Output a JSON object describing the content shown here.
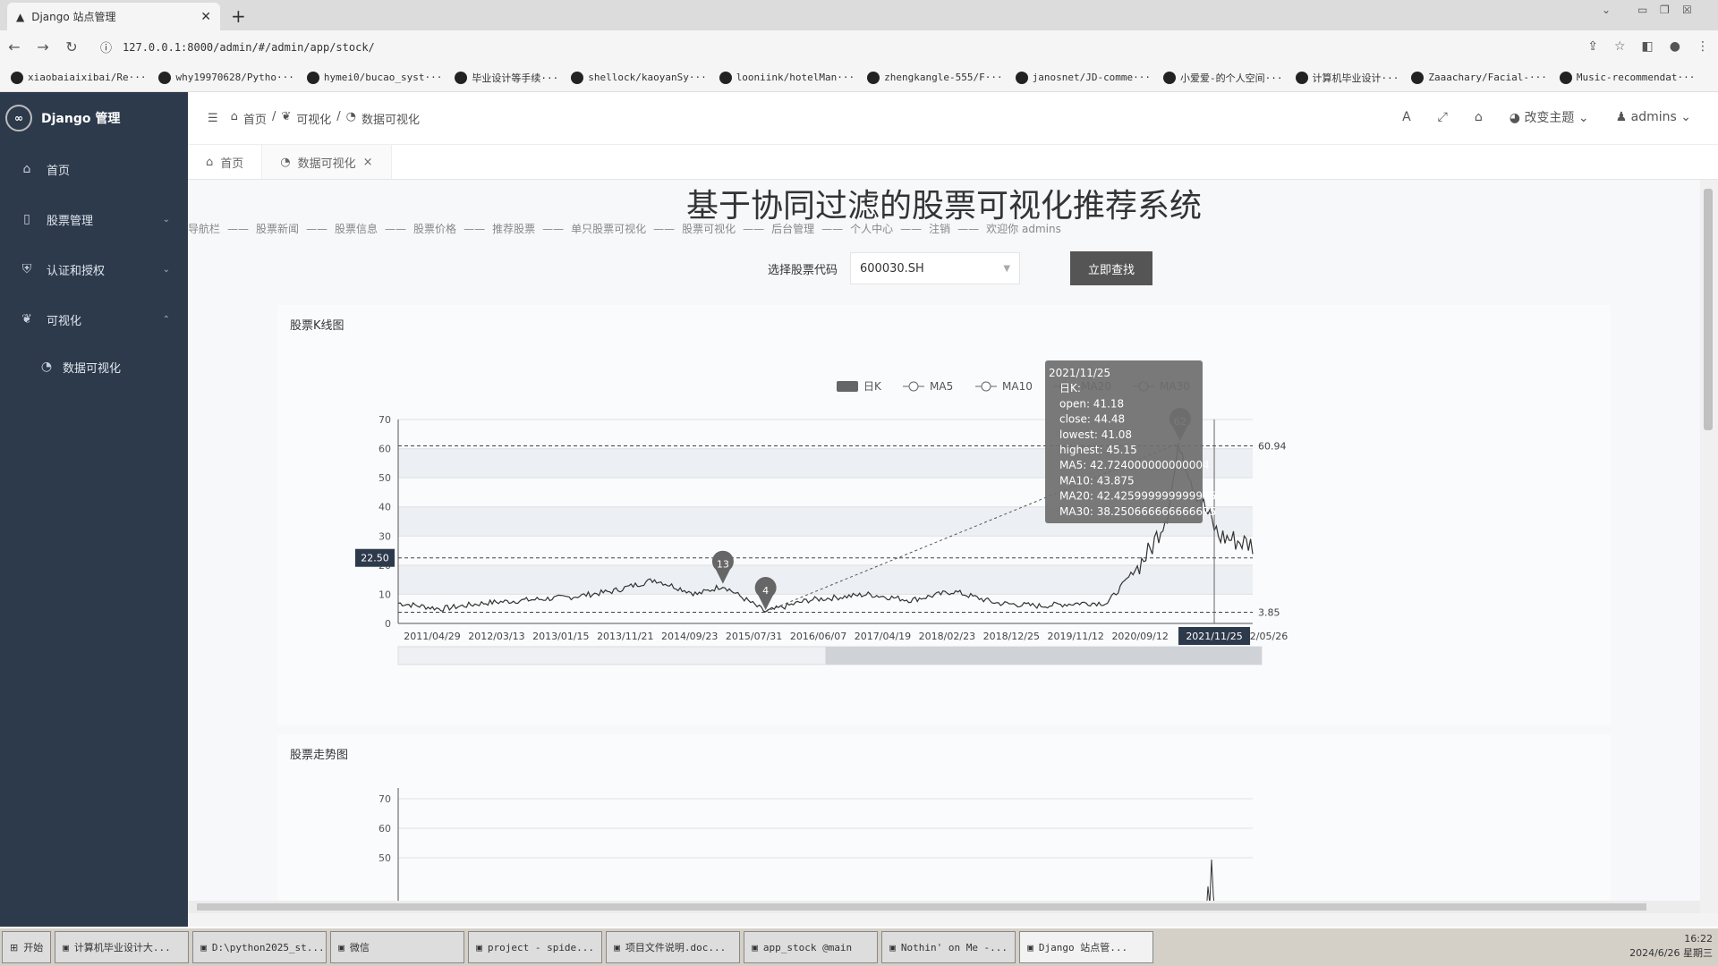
{
  "browser": {
    "tab_title": "Django 站点管理",
    "url": "127.0.0.1:8000/admin/#/admin/app/stock/",
    "bookmarks": [
      "xiaobaiaixibai/Re···",
      "why19970628/Pytho···",
      "hymei0/bucao_syst···",
      "毕业设计等手续···",
      "shellock/kaoyanSy···",
      "looniink/hotelMan···",
      "zhengkangle-555/F···",
      "janosnet/JD-comme···",
      "小爱爱-的个人空间···",
      "计算机毕业设计···",
      "Zaaachary/Facial-···",
      "Music-recommendat···"
    ]
  },
  "sidebar": {
    "brand": "Django 管理",
    "items": [
      {
        "label": "首页",
        "icon": "home-icon"
      },
      {
        "label": "股票管理",
        "icon": "file-icon"
      },
      {
        "label": "认证和授权",
        "icon": "shield-icon"
      },
      {
        "label": "可视化",
        "icon": "leaf-icon"
      }
    ],
    "sub_items": [
      {
        "label": "数据可视化",
        "icon": "chart-icon"
      }
    ]
  },
  "header": {
    "crumbs": [
      "首页",
      "可视化",
      "数据可视化"
    ],
    "theme": "改变主题",
    "user": "admins"
  },
  "page_tabs": [
    {
      "label": "首页"
    },
    {
      "label": "数据可视化"
    }
  ],
  "page": {
    "title": "基于协同过滤的股票可视化推荐系统",
    "nav": [
      "导航栏",
      "——",
      "股票新闻",
      "——",
      "股票信息",
      "——",
      "股票价格",
      "——",
      "推荐股票",
      "——",
      "单只股票可视化",
      "——",
      "股票可视化",
      "——",
      "后台管理",
      "——",
      "个人中心",
      "——",
      "注销",
      "——",
      "欢迎你 admins"
    ],
    "search_label": "选择股票代码",
    "search_value": "600030.SH",
    "search_button": "立即查找",
    "panel1_title": "股票K线图",
    "panel2_title": "股票走势图"
  },
  "chart_data": [
    {
      "type": "line",
      "chart_kind": "candlestick",
      "legend": [
        "日K",
        "MA5",
        "MA10",
        "MA20",
        "MA30"
      ],
      "x_ticks": [
        "2011/04/29",
        "2012/03/13",
        "2013/01/15",
        "2013/11/21",
        "2014/09/23",
        "2015/07/31",
        "2016/06/07",
        "2017/04/19",
        "2018/02/23",
        "2018/12/25",
        "2019/11/12",
        "2020/09/12",
        "2021",
        "2/05/26"
      ],
      "ylim": [
        0,
        70
      ],
      "y_ticks": [
        0,
        10,
        20,
        30,
        40,
        50,
        60,
        70
      ],
      "mark_lines": [
        60.94,
        22.5,
        3.85
      ],
      "mark_points": [
        {
          "label": "13",
          "x": 0.38,
          "y": 13
        },
        {
          "label": "4",
          "x": 0.43,
          "y": 4
        },
        {
          "label": "62",
          "x": 0.915,
          "y": 62
        }
      ],
      "axis_pointer_label": "2021/11/25",
      "y_pointer_label": "22.50",
      "series_approx": {
        "x": [
          0,
          0.05,
          0.1,
          0.15,
          0.2,
          0.25,
          0.3,
          0.35,
          0.38,
          0.43,
          0.48,
          0.55,
          0.6,
          0.65,
          0.7,
          0.75,
          0.8,
          0.83,
          0.85,
          0.88,
          0.9,
          0.915,
          0.93,
          0.96,
          1.0
        ],
        "y": [
          7,
          5,
          7,
          8,
          9,
          11,
          15,
          10,
          13,
          4,
          8,
          10,
          8,
          11,
          7,
          6,
          7,
          7,
          14,
          25,
          38,
          62,
          48,
          30,
          27
        ]
      },
      "tooltip": {
        "date": "2021/11/25",
        "series": "日K:",
        "open": "open: 41.18",
        "close": "close: 44.48",
        "lowest": "lowest: 41.08",
        "highest": "highest: 45.15",
        "ma5": "MA5: 42.724000000000004",
        "ma10": "MA10: 43.875",
        "ma20": "MA20: 42.425999999999995",
        "ma30": "MA30: 38.250666666666675"
      }
    },
    {
      "type": "line",
      "y_ticks": [
        50,
        60,
        70
      ],
      "ylim": [
        0,
        70
      ]
    }
  ],
  "taskbar": {
    "start": "开始",
    "tasks": [
      "计算机毕业设计大...",
      "D:\\python2025_st...",
      "微信",
      "project - spide...",
      "项目文件说明.doc...",
      "app_stock @main",
      "Nothin' on Me -...",
      "Django 站点管..."
    ],
    "time": "16:22",
    "date": "2024/6/26 星期三"
  }
}
